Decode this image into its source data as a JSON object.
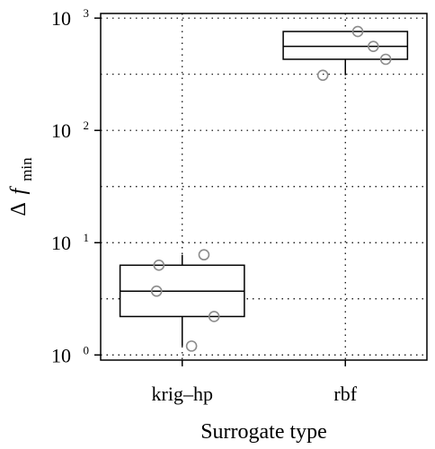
{
  "chart_data": {
    "type": "boxplot",
    "xlabel": "Surrogate type",
    "ylabel": {
      "symbol": "Δ",
      "var": "f",
      "sub": "min"
    },
    "yscale": "log10",
    "ylim": [
      0.9,
      1100
    ],
    "yticks": [
      {
        "base": "10",
        "exp": "0",
        "value": 1
      },
      {
        "base": "10",
        "exp": "1",
        "value": 10
      },
      {
        "base": "10",
        "exp": "2",
        "value": 100
      },
      {
        "base": "10",
        "exp": "3",
        "value": 1000
      }
    ],
    "grid": true,
    "categories": [
      "krig–hp",
      "rbf"
    ],
    "boxes": [
      {
        "category": "krig–hp",
        "whisker_low": 1.2,
        "q1": 2.2,
        "median": 3.7,
        "q3": 6.3,
        "whisker_high": 7.8,
        "points": [
          {
            "offset": -0.3,
            "y": 6.3
          },
          {
            "offset": -0.33,
            "y": 3.7
          },
          {
            "offset": 0.12,
            "y": 1.2
          },
          {
            "offset": 0.28,
            "y": 7.8
          },
          {
            "offset": 0.41,
            "y": 2.2
          }
        ]
      },
      {
        "category": "rbf",
        "whisker_low": 310,
        "q1": 430,
        "median": 560,
        "q3": 760,
        "whisker_high": 760,
        "points": [
          {
            "offset": -0.29,
            "y": 310
          },
          {
            "offset": 0.16,
            "y": 760
          },
          {
            "offset": 0.36,
            "y": 560
          },
          {
            "offset": 0.52,
            "y": 430
          }
        ]
      }
    ],
    "colors": {
      "box": "#000000",
      "point": "#8c8c8c",
      "grid": "#000000"
    }
  }
}
